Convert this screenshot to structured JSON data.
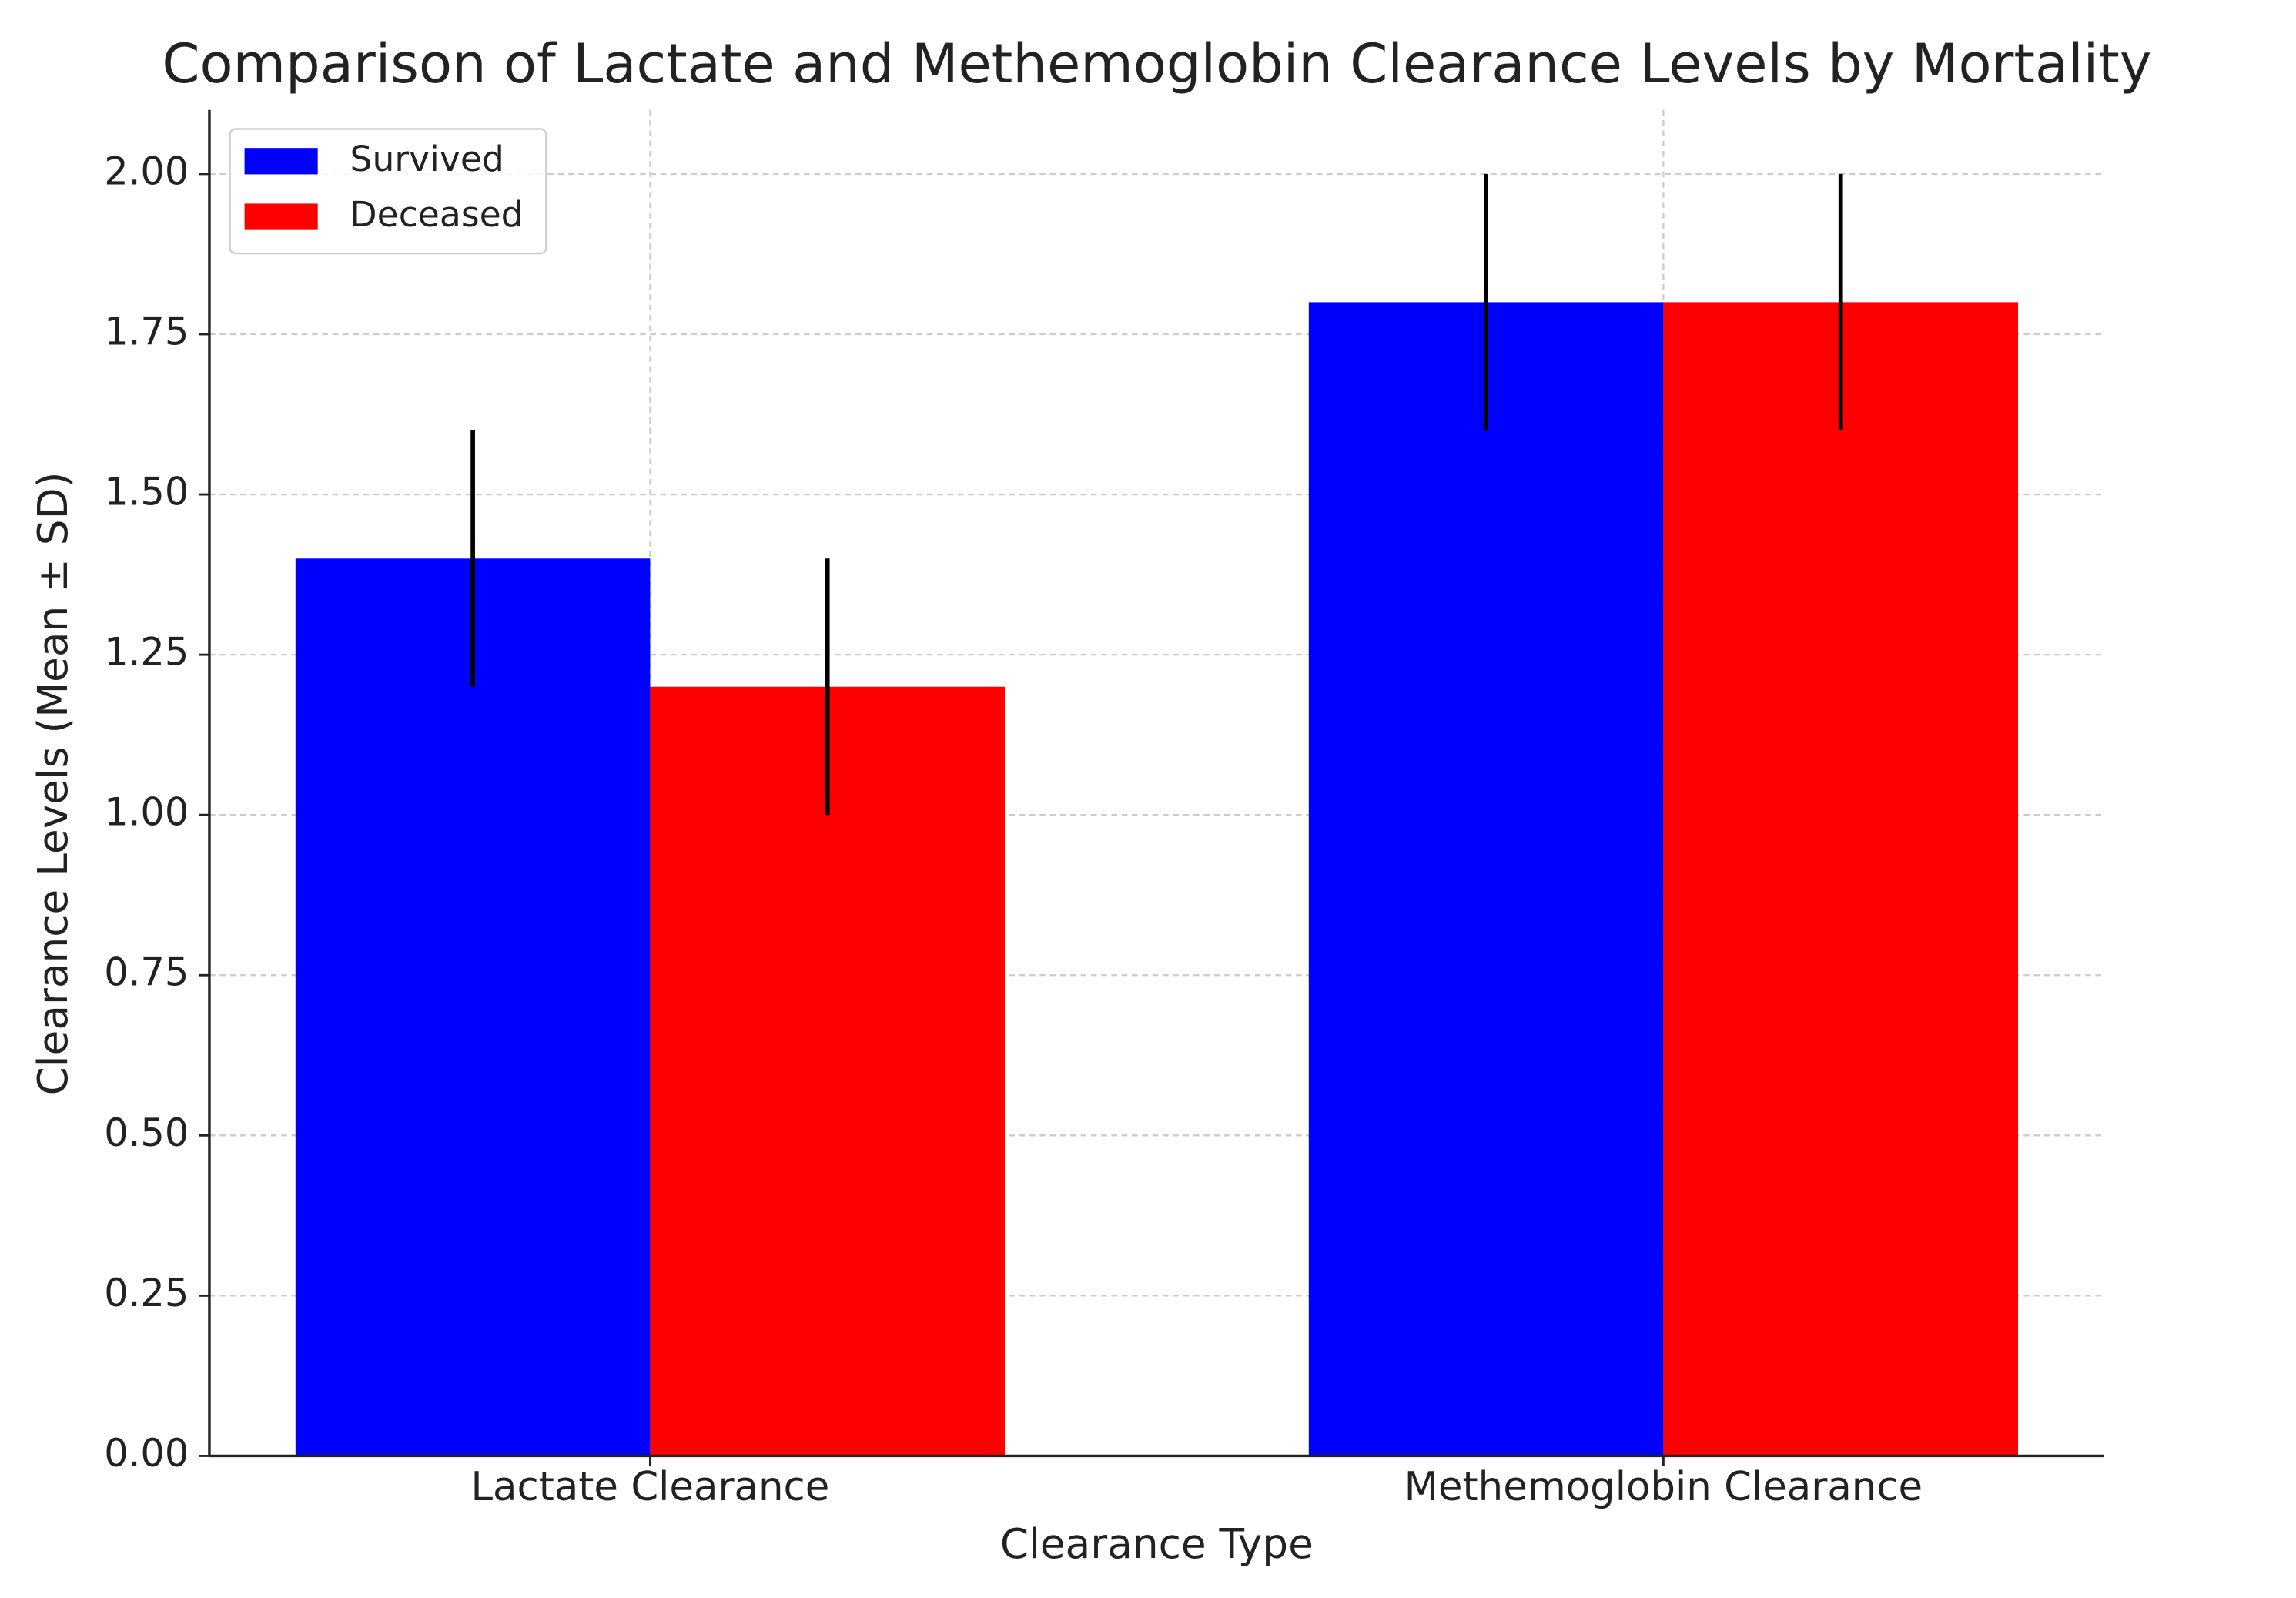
{
  "chart_data": {
    "type": "bar",
    "title": "Comparison of Lactate and Methemoglobin Clearance Levels by Mortality",
    "x_label": "Clearance Type",
    "y_label": "Clearance Levels (Mean ± SD)",
    "categories": [
      "Lactate Clearance",
      "Methemoglobin Clearance"
    ],
    "series": [
      {
        "name": "Survived",
        "color": "#0000ff",
        "values": [
          1.4,
          1.8
        ],
        "errors": [
          0.2,
          0.2
        ]
      },
      {
        "name": "Deceased",
        "color": "#ff0000",
        "values": [
          1.2,
          1.8
        ],
        "errors": [
          0.2,
          0.2
        ]
      }
    ],
    "ylim": [
      0,
      2.1
    ],
    "yticks": [
      {
        "value": 0,
        "label": "0.00"
      },
      {
        "value": 0.25,
        "label": "0.25"
      },
      {
        "value": 0.5,
        "label": "0.50"
      },
      {
        "value": 0.75,
        "label": "0.75"
      },
      {
        "value": 1,
        "label": "1.00"
      },
      {
        "value": 1.25,
        "label": "1.25"
      },
      {
        "value": 1.5,
        "label": "1.50"
      },
      {
        "value": 1.75,
        "label": "1.75"
      },
      {
        "value": 2,
        "label": "2.00"
      }
    ],
    "grid": true,
    "legend_position": "upper-left"
  }
}
